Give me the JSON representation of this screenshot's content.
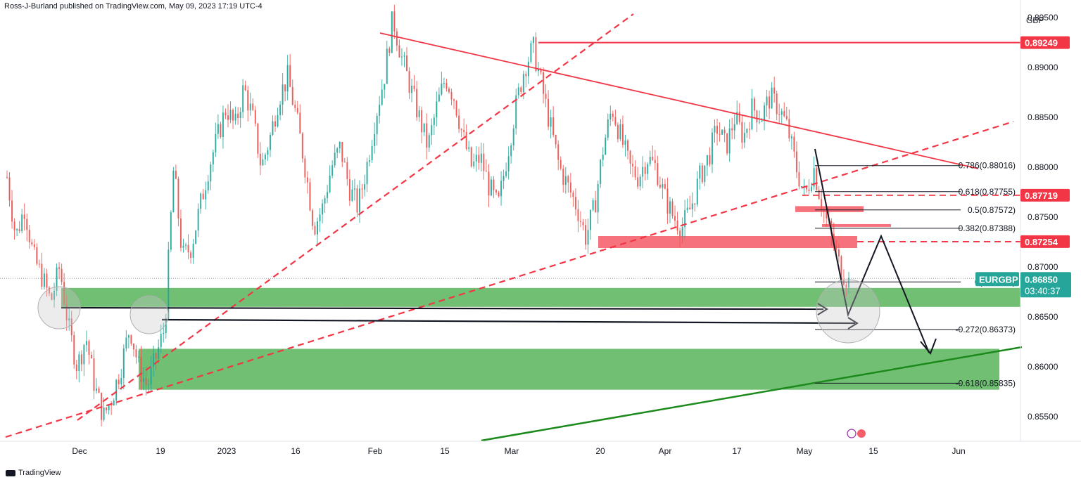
{
  "header": {
    "published_by": "Ross-J-Burland published on TradingView.com, May 09, 2023 17:19 UTC-4"
  },
  "footer": {
    "brand": "TradingView"
  },
  "chart_data": {
    "type": "candlestick",
    "symbol": "EURGBP",
    "currency": "GBP",
    "last_price": 0.8685,
    "countdown": "03:40:37",
    "y_ticks": [
      0.855,
      0.86,
      0.865,
      0.87,
      0.875,
      0.88,
      0.885,
      0.89,
      0.895
    ],
    "y_tick_labels": [
      "0.85500",
      "0.86000",
      "0.86500",
      "0.87000",
      "0.87500",
      "0.88000",
      "0.88500",
      "0.89000",
      "0.89500"
    ],
    "ylim": [
      0.8516,
      0.8986
    ],
    "x_tick_labels": [
      "Dec",
      "19",
      "2023",
      "16",
      "Feb",
      "15",
      "Mar",
      "20",
      "Apr",
      "17",
      "May",
      "15",
      "Jun"
    ],
    "price_labels": [
      {
        "value": 0.89249,
        "text": "0.89249",
        "color": "#f23645"
      },
      {
        "value": 0.87719,
        "text": "0.87719",
        "color": "#f23645"
      },
      {
        "value": 0.87254,
        "text": "0.87254",
        "color": "#f23645"
      }
    ],
    "fib_levels": [
      {
        "value": 0.88016,
        "text": "0.786(0.88016)"
      },
      {
        "value": 0.87755,
        "text": "0.618(0.87755)"
      },
      {
        "value": 0.87572,
        "text": "0.5(0.87572)"
      },
      {
        "value": 0.87388,
        "text": "0.382(0.87388)"
      },
      {
        "value": 0.8685,
        "text": "0(0.86850)"
      },
      {
        "value": 0.86373,
        "text": "-0.272(0.86373)"
      },
      {
        "value": 0.85835,
        "text": "-0.618(0.85835)"
      }
    ],
    "price_path": [
      [
        0.879,
        0.873,
        0.876,
        0.871,
        0.869,
        0.8665,
        0.87,
        0.864,
        0.86,
        0.863,
        0.858,
        0.855,
        0.857,
        0.86,
        0.864,
        0.86,
        0.858,
        0.861,
        0.864,
        0.88,
        0.871,
        0.872,
        0.876,
        0.88,
        0.883,
        0.886,
        0.884,
        0.888,
        0.885,
        0.88,
        0.883,
        0.887,
        0.889,
        0.885,
        0.88,
        0.874,
        0.876,
        0.88,
        0.882,
        0.878,
        0.876,
        0.88,
        0.885,
        0.889,
        0.895,
        0.891,
        0.888,
        0.885,
        0.882,
        0.886,
        0.889,
        0.887,
        0.883,
        0.88,
        0.881,
        0.878,
        0.876,
        0.881,
        0.886,
        0.89,
        0.892,
        0.888,
        0.884,
        0.88,
        0.878,
        0.876,
        0.873,
        0.876,
        0.882,
        0.886,
        0.883,
        0.88,
        0.879,
        0.881,
        0.88,
        0.877,
        0.875,
        0.874,
        0.876,
        0.879,
        0.881,
        0.884,
        0.882,
        0.885,
        0.883,
        0.886,
        0.885,
        0.887,
        0.886,
        0.884,
        0.88,
        0.877,
        0.88,
        0.876,
        0.873,
        0.87,
        0.8685
      ]
    ]
  }
}
